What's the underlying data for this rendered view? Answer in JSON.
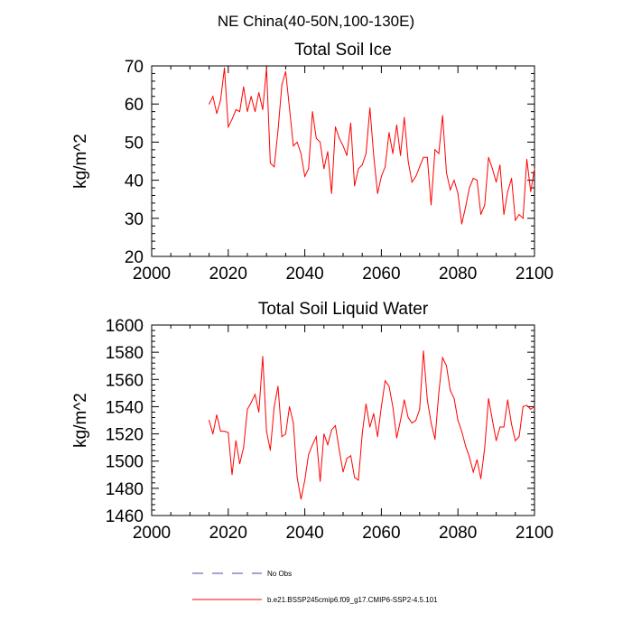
{
  "title": "NE China(40-50N,100-130E)",
  "chart_data": [
    {
      "type": "line",
      "title": "Total Soil Ice",
      "xlabel": "",
      "ylabel": "kg/m^2",
      "xlim": [
        2000,
        2100
      ],
      "ylim": [
        20,
        70
      ],
      "xticks": [
        2000,
        2020,
        2040,
        2060,
        2080,
        2100
      ],
      "yticks": [
        20,
        30,
        40,
        50,
        60,
        70
      ],
      "series": [
        {
          "name": "b.e21.BSSP245cmip6.f09_g17.CMIP6-SSP2-4.5.101",
          "color": "#ff0000",
          "x": [
            2015,
            2016,
            2017,
            2018,
            2019,
            2020,
            2021,
            2022,
            2023,
            2024,
            2025,
            2026,
            2027,
            2028,
            2029,
            2030,
            2031,
            2032,
            2033,
            2034,
            2035,
            2036,
            2037,
            2038,
            2039,
            2040,
            2041,
            2042,
            2043,
            2044,
            2045,
            2046,
            2047,
            2048,
            2049,
            2050,
            2051,
            2052,
            2053,
            2054,
            2055,
            2056,
            2057,
            2058,
            2059,
            2060,
            2061,
            2062,
            2063,
            2064,
            2065,
            2066,
            2067,
            2068,
            2069,
            2070,
            2071,
            2072,
            2073,
            2074,
            2075,
            2076,
            2077,
            2078,
            2079,
            2080,
            2081,
            2082,
            2083,
            2084,
            2085,
            2086,
            2087,
            2088,
            2089,
            2090,
            2091,
            2092,
            2093,
            2094,
            2095,
            2096,
            2097,
            2098,
            2099,
            2100
          ],
          "values": [
            60,
            62,
            57.5,
            61,
            69.5,
            54,
            56,
            58.5,
            58,
            64.5,
            58,
            62,
            58,
            63,
            58.5,
            69.5,
            44.5,
            43.5,
            53,
            65,
            68.5,
            59,
            49,
            50,
            47,
            41,
            43,
            58,
            51,
            50,
            43,
            47.5,
            36.5,
            54,
            51,
            49,
            46.5,
            55,
            38.5,
            43,
            44,
            47,
            59,
            46.5,
            36.5,
            41,
            43.5,
            52.5,
            47,
            54.5,
            46.5,
            56.5,
            45,
            39.5,
            41,
            43.5,
            46,
            46,
            33.5,
            48,
            47,
            57,
            42,
            37.5,
            40,
            36.5,
            28.5,
            33,
            38,
            40.5,
            40,
            31,
            33.5,
            46,
            43,
            39.5,
            44,
            31,
            37,
            40.5,
            29.5,
            31,
            30,
            45.5,
            37,
            43
          ]
        }
      ]
    },
    {
      "type": "line",
      "title": "Total Soil Liquid Water",
      "xlabel": "",
      "ylabel": "kg/m^2",
      "xlim": [
        2000,
        2100
      ],
      "ylim": [
        1460,
        1600
      ],
      "xticks": [
        2000,
        2020,
        2040,
        2060,
        2080,
        2100
      ],
      "yticks": [
        1460,
        1480,
        1500,
        1520,
        1540,
        1560,
        1580,
        1600
      ],
      "series": [
        {
          "name": "b.e21.BSSP245cmip6.f09_g17.CMIP6-SSP2-4.5.101",
          "color": "#ff0000",
          "x": [
            2015,
            2016,
            2017,
            2018,
            2019,
            2020,
            2021,
            2022,
            2023,
            2024,
            2025,
            2026,
            2027,
            2028,
            2029,
            2030,
            2031,
            2032,
            2033,
            2034,
            2035,
            2036,
            2037,
            2038,
            2039,
            2040,
            2041,
            2042,
            2043,
            2044,
            2045,
            2046,
            2047,
            2048,
            2049,
            2050,
            2051,
            2052,
            2053,
            2054,
            2055,
            2056,
            2057,
            2058,
            2059,
            2060,
            2061,
            2062,
            2063,
            2064,
            2065,
            2066,
            2067,
            2068,
            2069,
            2070,
            2071,
            2072,
            2073,
            2074,
            2075,
            2076,
            2077,
            2078,
            2079,
            2080,
            2081,
            2082,
            2083,
            2084,
            2085,
            2086,
            2087,
            2088,
            2089,
            2090,
            2091,
            2092,
            2093,
            2094,
            2095,
            2096,
            2097,
            2098,
            2099,
            2100
          ],
          "values": [
            1530,
            1520,
            1534,
            1522,
            1522,
            1521,
            1490,
            1515,
            1498,
            1510,
            1538,
            1543,
            1549,
            1536,
            1577,
            1522,
            1508,
            1540,
            1555,
            1518,
            1520,
            1540,
            1528,
            1488,
            1472,
            1486,
            1505,
            1512,
            1518,
            1485,
            1520,
            1512,
            1523,
            1526,
            1508,
            1492,
            1502,
            1504,
            1488,
            1486,
            1520,
            1542,
            1525,
            1535,
            1518,
            1540,
            1559,
            1555,
            1540,
            1517,
            1530,
            1545,
            1532,
            1528,
            1530,
            1538,
            1581,
            1545,
            1528,
            1516,
            1550,
            1576,
            1570,
            1552,
            1546,
            1530,
            1522,
            1511,
            1503,
            1492,
            1501,
            1487,
            1510,
            1546,
            1530,
            1515,
            1525,
            1525,
            1545,
            1527,
            1515,
            1518,
            1540,
            1541,
            1538,
            1540
          ]
        }
      ]
    }
  ],
  "legend": [
    {
      "label": "No Obs",
      "color": "#4a4aa0",
      "style": "dashed"
    },
    {
      "label": "b.e21.BSSP245cmip6.f09_g17.CMIP6-SSP2-4.5.101",
      "color": "#ff0000",
      "style": "solid"
    }
  ]
}
